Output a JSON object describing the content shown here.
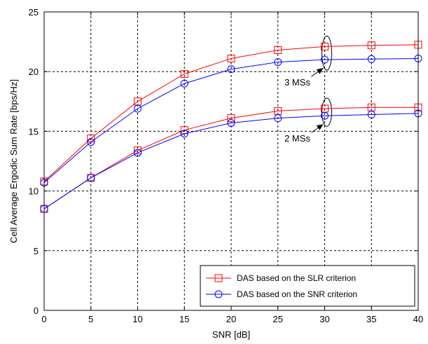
{
  "chart_data": {
    "type": "line",
    "xlabel": "SNR [dB]",
    "ylabel": "Cell Average Ergodic Sum Rate [bps/Hz]",
    "xlim": [
      0,
      40
    ],
    "ylim": [
      0,
      25
    ],
    "xticks": [
      0,
      5,
      10,
      15,
      20,
      25,
      30,
      35,
      40
    ],
    "yticks": [
      0,
      5,
      10,
      15,
      20,
      25
    ],
    "grid": true,
    "legend_position": "bottom-right",
    "x": [
      0,
      5,
      10,
      15,
      20,
      25,
      30,
      35,
      40
    ],
    "series": [
      {
        "group": "3 MSs",
        "name": "DAS based on the SLR criterion",
        "color": "#ff0000",
        "marker": "square",
        "values": [
          10.8,
          14.4,
          17.5,
          19.8,
          21.1,
          21.8,
          22.1,
          22.2,
          22.25
        ]
      },
      {
        "group": "3 MSs",
        "name": "DAS based on the SNR criterion",
        "color": "#0000ff",
        "marker": "circle",
        "values": [
          10.7,
          14.1,
          16.9,
          19.0,
          20.2,
          20.8,
          21.0,
          21.05,
          21.1
        ]
      },
      {
        "group": "2 MSs",
        "name": "DAS based on the SLR criterion",
        "color": "#ff0000",
        "marker": "square",
        "values": [
          8.5,
          11.1,
          13.4,
          15.1,
          16.1,
          16.7,
          16.9,
          17.0,
          17.0
        ]
      },
      {
        "group": "2 MSs",
        "name": "DAS based on the SNR criterion",
        "color": "#0000ff",
        "marker": "circle",
        "values": [
          8.5,
          11.1,
          13.2,
          14.8,
          15.7,
          16.1,
          16.3,
          16.4,
          16.5
        ]
      }
    ],
    "legend": [
      {
        "label": "DAS based on the SLR criterion",
        "color": "#ff0000",
        "marker": "square"
      },
      {
        "label": "DAS based on the SNR criterion",
        "color": "#0000ff",
        "marker": "circle"
      }
    ],
    "annotations": [
      {
        "text": "3 MSs",
        "ellipse_x": 30,
        "ellipse_y": [
          21.0,
          22.1
        ]
      },
      {
        "text": "2 MSs",
        "ellipse_x": 30,
        "ellipse_y": [
          16.3,
          16.9
        ]
      }
    ]
  }
}
